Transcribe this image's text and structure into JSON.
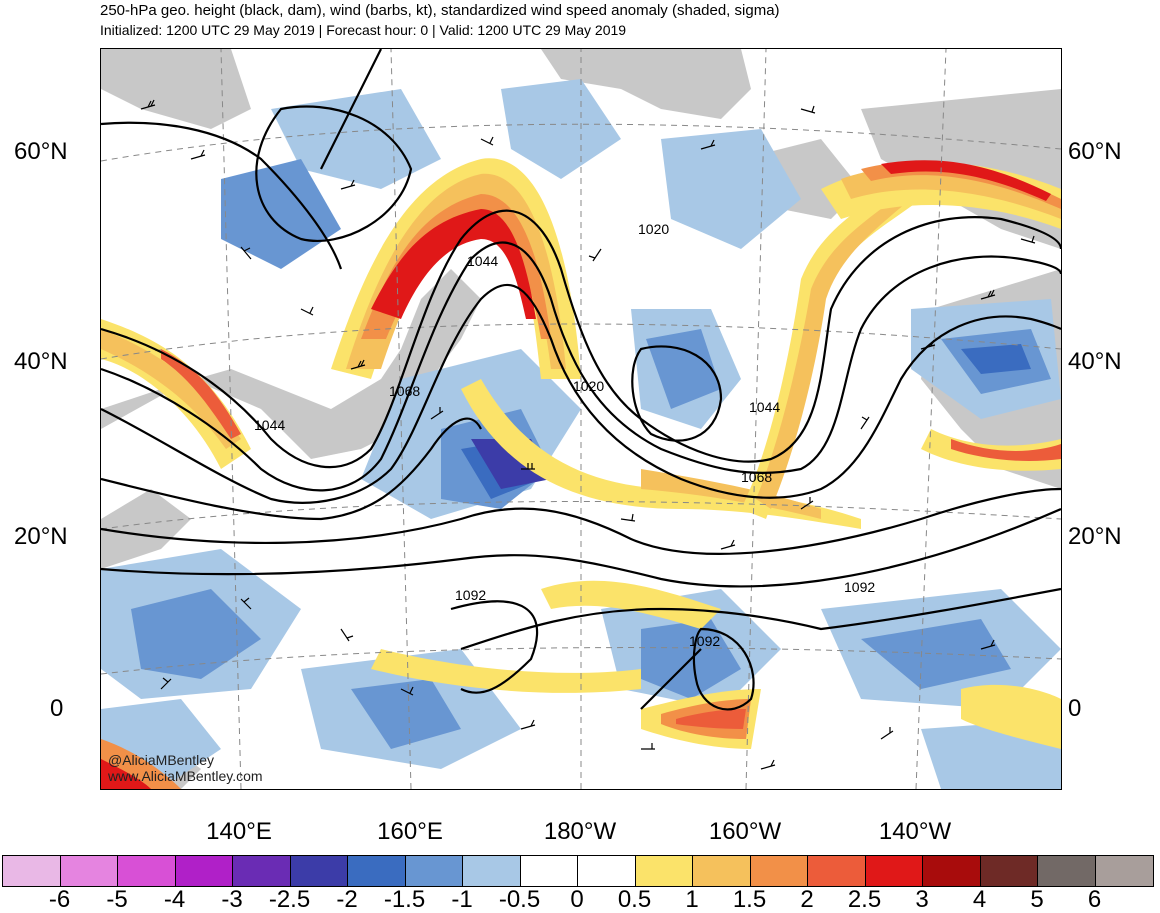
{
  "header": {
    "title": "250-hPa geo. height (black, dam), wind (barbs, kt), standardized wind speed anomaly (shaded, sigma)",
    "subtitle": "Initialized: 1200 UTC 29 May 2019 | Forecast hour: 0 | Valid: 1200 UTC 29 May 2019"
  },
  "map": {
    "lat_labels": [
      "60°N",
      "40°N",
      "20°N",
      "0"
    ],
    "lon_labels": [
      "140°E",
      "160°E",
      "180°W",
      "160°W",
      "140°W"
    ],
    "contour_labels": [
      "1020",
      "1044",
      "1044",
      "1068",
      "1020",
      "1044",
      "1068",
      "1092",
      "1092",
      "1092"
    ],
    "watermark_handle": "@AliciaMBentley",
    "watermark_url": "www.AliciaMBentley.com"
  },
  "colorbar": {
    "labels": [
      "-6",
      "-5",
      "-4",
      "-3",
      "-2.5",
      "-2",
      "-1.5",
      "-1",
      "-0.5",
      "0",
      "0.5",
      "1",
      "1.5",
      "2",
      "2.5",
      "3",
      "4",
      "5",
      "6"
    ],
    "colors": [
      "#e9b8e6",
      "#e584e0",
      "#d850d6",
      "#b020c8",
      "#6a2cb4",
      "#3c3ca8",
      "#3a6cc0",
      "#6896d2",
      "#a8c8e6",
      "#ffffff",
      "#ffffff",
      "#fbe36a",
      "#f5c15c",
      "#f29048",
      "#ec5c3a",
      "#e01818",
      "#a80c0c",
      "#6e2a26",
      "#726966",
      "#a89e9b"
    ]
  },
  "style": {
    "land_color": "#c8c8c8",
    "contour_color": "#000000"
  }
}
